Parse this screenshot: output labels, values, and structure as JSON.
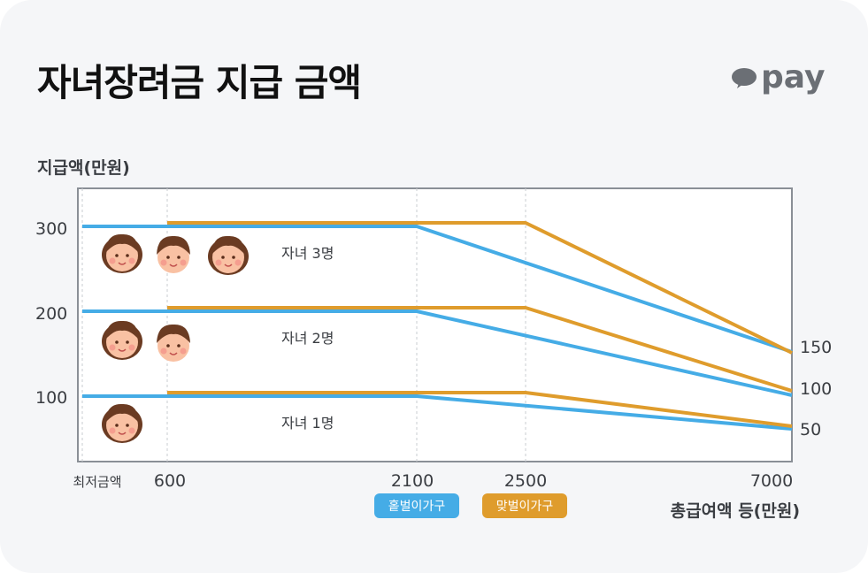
{
  "title": "자녀장려금 지급 금액",
  "brand": "pay",
  "colors": {
    "single": "#45ace6",
    "dual": "#df9c2c",
    "frame": "#8a8f96"
  },
  "chart_data": {
    "type": "line",
    "ylabel": "지급액(만원)",
    "xlabel": "총급여액 등(만원)",
    "x_ticks": [
      "최저금액",
      "600",
      "2100",
      "2500",
      "7000"
    ],
    "y_ticks_left": [
      "300",
      "200",
      "100"
    ],
    "y_ticks_right": [
      "150",
      "100",
      "50"
    ],
    "legend": [
      {
        "label": "홑벌이가구",
        "color": "#45ace6"
      },
      {
        "label": "맞벌이가구",
        "color": "#df9c2c"
      }
    ],
    "series": [
      {
        "name": "홑벌이가구",
        "group": "자녀 3명",
        "points": [
          [
            0,
            300
          ],
          [
            2100,
            300
          ],
          [
            7000,
            150
          ]
        ]
      },
      {
        "name": "맞벌이가구",
        "group": "자녀 3명",
        "points": [
          [
            600,
            300
          ],
          [
            2500,
            300
          ],
          [
            7000,
            150
          ]
        ]
      },
      {
        "name": "홑벌이가구",
        "group": "자녀 2명",
        "points": [
          [
            0,
            200
          ],
          [
            2100,
            200
          ],
          [
            7000,
            100
          ]
        ]
      },
      {
        "name": "맞벌이가구",
        "group": "자녀 2명",
        "points": [
          [
            600,
            200
          ],
          [
            2500,
            200
          ],
          [
            7000,
            100
          ]
        ]
      },
      {
        "name": "홑벌이가구",
        "group": "자녀 1명",
        "points": [
          [
            0,
            100
          ],
          [
            2100,
            100
          ],
          [
            7000,
            50
          ]
        ]
      },
      {
        "name": "맞벌이가구",
        "group": "자녀 1명",
        "points": [
          [
            600,
            100
          ],
          [
            2500,
            100
          ],
          [
            7000,
            50
          ]
        ]
      }
    ],
    "annotations": [
      "자녀 3명",
      "자녀 2명",
      "자녀 1명"
    ],
    "children_icons": [
      {
        "group": "자녀 3명",
        "count": 3
      },
      {
        "group": "자녀 2명",
        "count": 2
      },
      {
        "group": "자녀 1명",
        "count": 1
      }
    ]
  }
}
